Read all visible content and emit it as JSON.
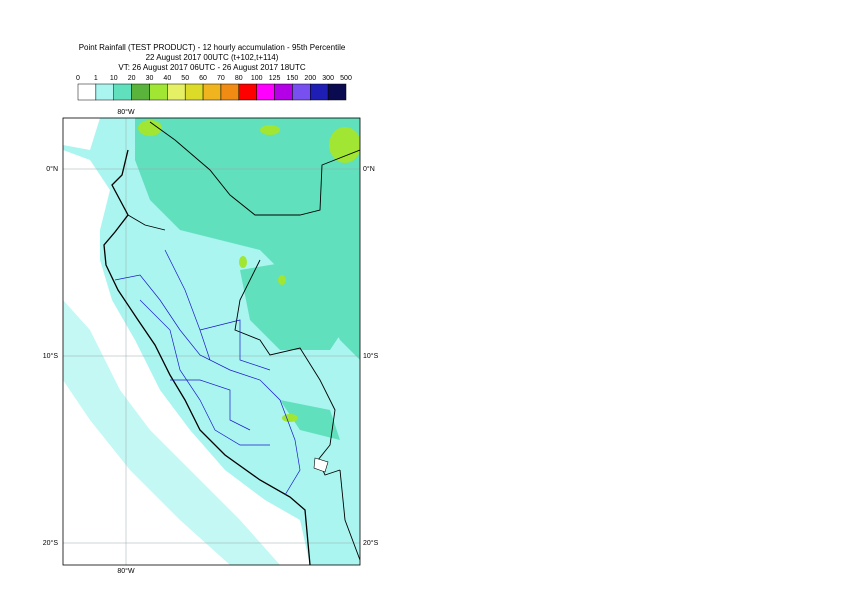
{
  "header": {
    "title": "Point Rainfall (TEST PRODUCT) - 12 hourly accumulation - 95th Percentile",
    "run": "22 August 2017 00UTC (t+102,t+114)",
    "valid": "VT: 26 August 2017 06UTC - 26 August 2017 18UTC"
  },
  "legend": {
    "levels": [
      0,
      1,
      10,
      20,
      30,
      40,
      50,
      60,
      70,
      80,
      100,
      125,
      150,
      200,
      300,
      500
    ],
    "colors": [
      "#ffffff",
      "#aaf5f0",
      "#60e0bc",
      "#5ab43c",
      "#a0e632",
      "#e6f064",
      "#dcdc28",
      "#f0b41e",
      "#f08c14",
      "#ff0000",
      "#ff00ff",
      "#b400e6",
      "#7850f0",
      "#1e1eb4",
      "#0a0a50"
    ]
  },
  "map": {
    "lat_labels": [
      "0°N",
      "10°S",
      "20°S"
    ],
    "lon_label": "80°W"
  }
}
